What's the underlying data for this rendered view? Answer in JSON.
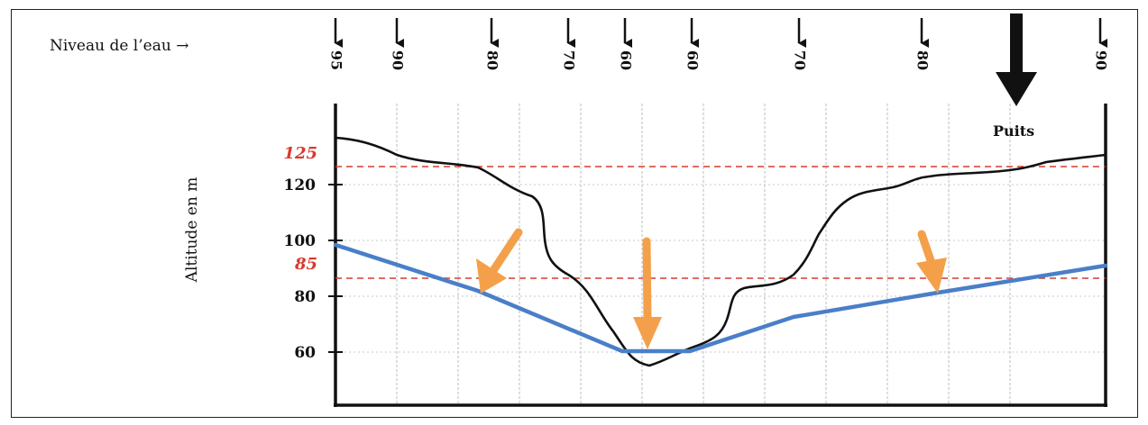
{
  "water_level_label": "Niveau de l’eau →",
  "well_label": "Puits",
  "y_axis_label": "Altitude en m",
  "y_ticks": [
    "60",
    "80",
    "100",
    "120"
  ],
  "red_levels": [
    "125",
    "85"
  ],
  "water_levels": [
    "95",
    "90",
    "80",
    "70",
    "60",
    "60",
    "70",
    "80",
    "90"
  ],
  "colors": {
    "terrain": "#111111",
    "water_table": "#4a7fc8",
    "reference_lines": "#d83a2e",
    "flow_arrows": "#f4a04a",
    "grid": "#bdbdbd"
  }
}
